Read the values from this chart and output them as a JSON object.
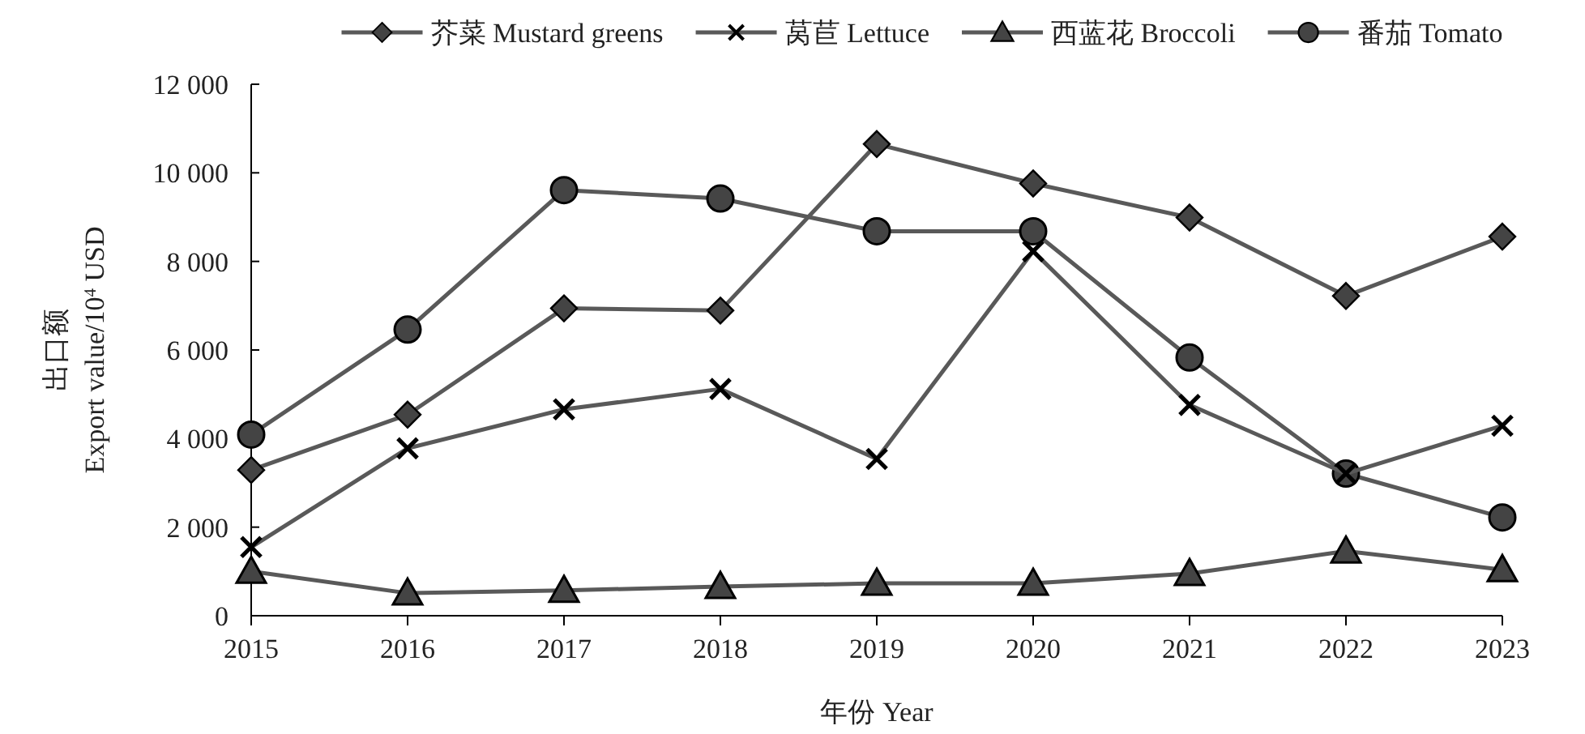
{
  "chart_data": {
    "type": "line",
    "xlabel": "年份 Year",
    "ylabel": "出口额\nExport value/10$^{4}$ USD",
    "categories": [
      "2015",
      "2016",
      "2017",
      "2018",
      "2019",
      "2020",
      "2021",
      "2022",
      "2023"
    ],
    "ylim": [
      0,
      12000
    ],
    "yticks": [
      {
        "value": 0,
        "label": "0"
      },
      {
        "value": 2000,
        "label": "2 000"
      },
      {
        "value": 4000,
        "label": "4 000"
      },
      {
        "value": 6000,
        "label": "6 000"
      },
      {
        "value": 8000,
        "label": "8 000"
      },
      {
        "value": 10000,
        "label": "10 000"
      },
      {
        "value": 12000,
        "label": "12 000"
      }
    ],
    "grid": false,
    "legend": "top",
    "line_style": "solid",
    "series": [
      {
        "name": "芥菜 Mustard greens",
        "color": "#595959",
        "marker": "diamond",
        "values": [
          3290,
          4540,
          6940,
          6890,
          10650,
          9760,
          8990,
          7220,
          8560
        ]
      },
      {
        "name": "莴苣 Lettuce",
        "color": "#595959",
        "marker": "cross",
        "values": [
          1550,
          3780,
          4660,
          5120,
          3540,
          8230,
          4760,
          3210,
          4290
        ]
      },
      {
        "name": "西蓝花 Broccoli",
        "color": "#595959",
        "marker": "triangle",
        "values": [
          1000,
          510,
          570,
          660,
          730,
          730,
          950,
          1460,
          1040
        ]
      },
      {
        "name": "番茄 Tomato",
        "color": "#595959",
        "marker": "circle",
        "values": [
          4090,
          6460,
          9610,
          9420,
          8680,
          8680,
          5830,
          3210,
          2220
        ]
      }
    ]
  }
}
